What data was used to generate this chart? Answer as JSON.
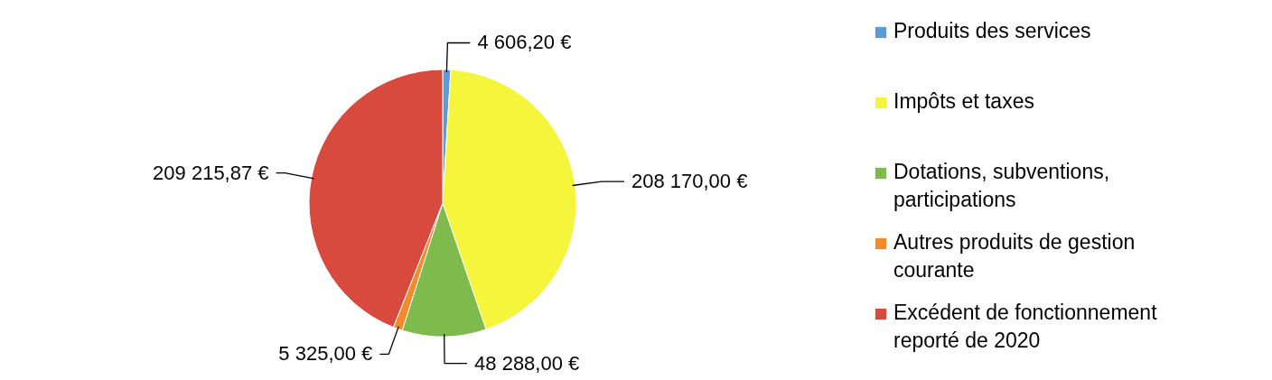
{
  "chart_data": {
    "type": "pie",
    "categories": [
      "Produits des services",
      "Impôts et taxes",
      "Dotations, subventions, participations",
      "Autres produits de gestion courante",
      "Excédent de fonctionnement reporté de 2020"
    ],
    "values": [
      4606.2,
      208170.0,
      48288.0,
      5325.0,
      209215.87
    ],
    "value_labels": [
      "4 606,20  €",
      "208 170,00  €",
      "48 288,00  €",
      "5 325,00  €",
      "209 215,87  €"
    ],
    "colors": [
      "#5b9bd5",
      "#f5f53c",
      "#7fba4c",
      "#f58a2a",
      "#d84a3e"
    ],
    "legend": "right"
  }
}
